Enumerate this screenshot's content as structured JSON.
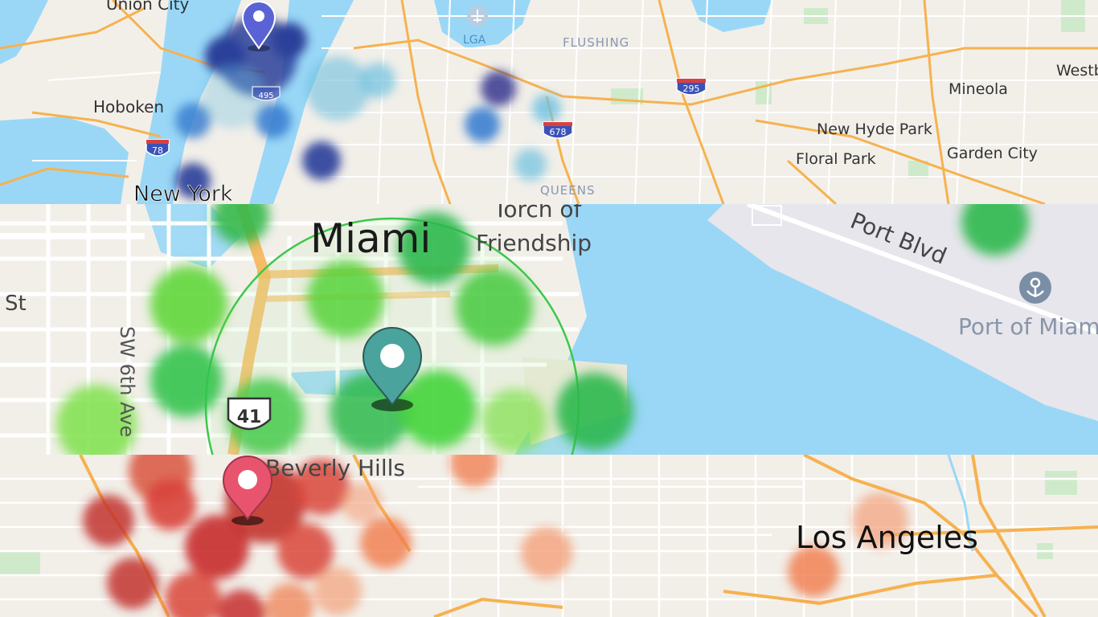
{
  "panels": [
    {
      "name": "new-york",
      "accent": "#2f4fa8",
      "labels": {
        "union_city": "Union City",
        "hoboken": "Hoboken",
        "new_york": "New York",
        "lga": "LGA",
        "flushing": "FLUSHING",
        "queens": "QUEENS",
        "mineola": "Mineola",
        "westbury": "Westb",
        "new_hyde_park": "New Hyde Park",
        "floral_park": "Floral Park",
        "garden_city": "Garden City"
      },
      "shields": {
        "i78": "78",
        "i295": "295",
        "i678": "678",
        "i495": "495"
      }
    },
    {
      "name": "miami",
      "accent": "#3cc84a",
      "labels": {
        "miami": "Miami",
        "torch_1": "Torch of",
        "torch_2": "Friendship",
        "port_blvd": "Port Blvd",
        "port_of_miami": "Port of Miam",
        "st": "St",
        "sw6": "SW 6th Ave"
      },
      "shields": {
        "us41": "41"
      }
    },
    {
      "name": "los-angeles",
      "accent": "#e04c3c",
      "labels": {
        "beverly_hills": "Beverly Hills",
        "los_angeles": "Los Angeles"
      }
    }
  ],
  "colors": {
    "land": "#f2efe9",
    "water": "#9ad7f7",
    "park": "#cfeacb",
    "road_major": "#f6b24f",
    "road_minor": "#ffffff",
    "ny_pin": "#5a63d6",
    "miami_pin": "#4aa39c",
    "la_pin": "#e8546e"
  },
  "icons": [
    "map-pin-icon",
    "airport-icon",
    "port-icon",
    "interstate-shield-icon",
    "us-route-shield-icon"
  ]
}
